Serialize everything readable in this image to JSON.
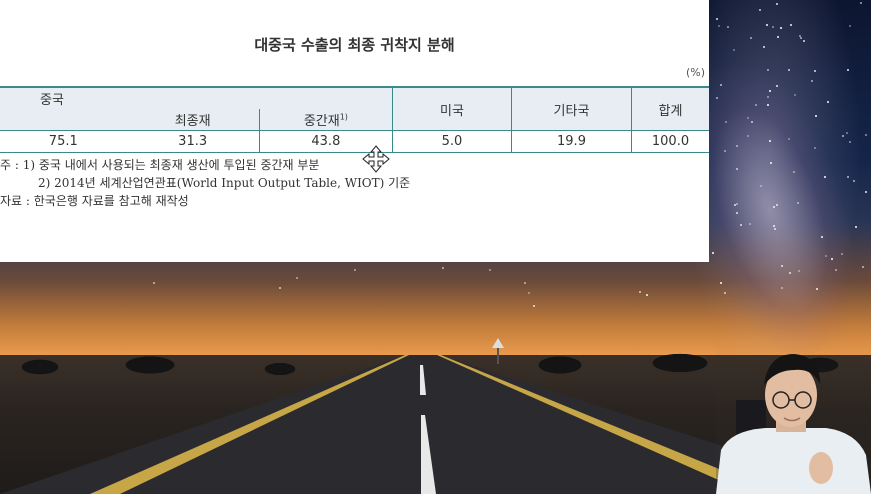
{
  "document": {
    "title": "대중국 수출의 최종 귀착지 분해",
    "unit": "(%)",
    "table": {
      "headers": {
        "china": "중국",
        "final_goods": "최종재",
        "intermediate_goods": "중간재",
        "intermediate_sup": "1)",
        "usa": "미국",
        "other_countries": "기타국",
        "total": "합계"
      },
      "row": [
        "75.1",
        "31.3",
        "43.8",
        "5.0",
        "19.9",
        "100.0"
      ]
    },
    "notes": {
      "note1": "주 : 1) 중국 내에서 사용되는 최종재 생산에 투입된 중간재 부분",
      "note2": "2) 2014년 세계산업연관표(World Input Output Table, WIOT) 기준",
      "source": "자료 : 한국은행 자료를 참고해 재작성"
    }
  },
  "colors": {
    "table_rule": "#3a8a8a",
    "header_fill": "#e8edf4",
    "document_bg": "#ffffff"
  },
  "icons": {
    "cursor": "move-cursor-icon"
  }
}
